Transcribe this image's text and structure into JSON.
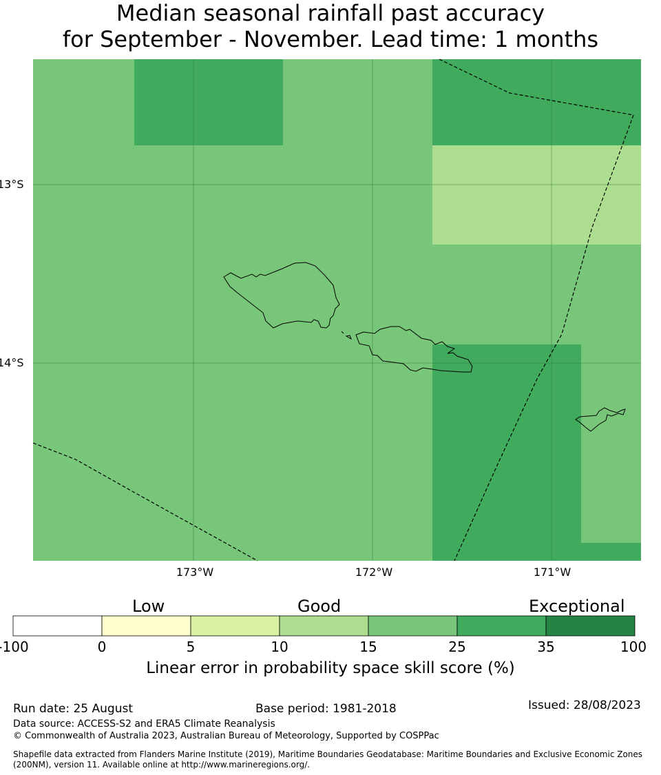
{
  "title": {
    "line1": "Median seasonal rainfall past accuracy",
    "line2": "for September - November. Lead time: 1 months"
  },
  "map": {
    "lat_labels": [
      "13°S",
      "14°S"
    ],
    "lon_labels": [
      "173°W",
      "172°W",
      "171°W"
    ],
    "colors": {
      "cat_15_25": "#78c679",
      "cat_25_35": "#41ab5d",
      "cat_10_15": "#addd8e",
      "coast": "#000000",
      "eez": "#000000"
    }
  },
  "colorbar": {
    "categories": [
      "Low",
      "Good",
      "Exceptional"
    ],
    "ticks": [
      "-100",
      "0",
      "5",
      "10",
      "15",
      "25",
      "35",
      "100"
    ],
    "colors": [
      "#ffffff",
      "#ffffcc",
      "#d9f0a3",
      "#addd8e",
      "#78c679",
      "#41ab5d",
      "#238443"
    ],
    "label": "Linear error in probability space skill score (%)"
  },
  "footer": {
    "run_date": "Run date: 25 August",
    "base_period": "Base period: 1981-2018",
    "issued": "Issued: 28/08/2023",
    "data_source": "Data source: ACCESS-S2 and ERA5 Climate Reanalysis",
    "copyright": "© Commonwealth of Australia 2023, Australian Bureau of Meteorology, Supported by COSPPac",
    "shapefile_line1": "Shapefile data extracted from Flanders Marine Institute (2019), Maritime Boundaries Geodatabase: Maritime Boundaries and Exclusive Economic Zones",
    "shapefile_line2": "(200NM), version 11. Available online at http://www.marineregions.org/."
  }
}
